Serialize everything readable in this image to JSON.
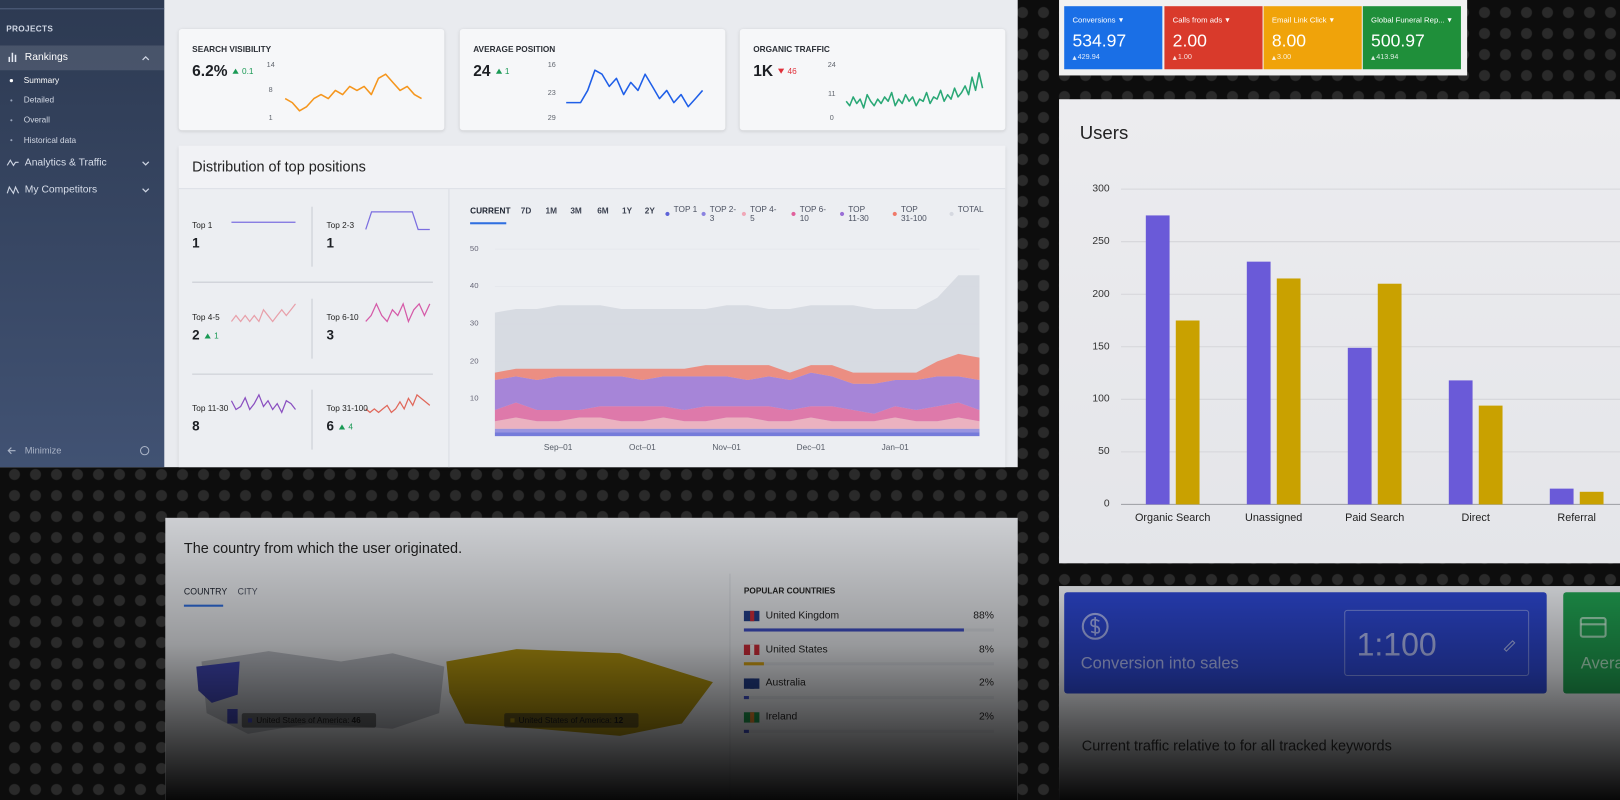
{
  "sidebar": {
    "section": "PROJECTS",
    "items": [
      {
        "label": "Rankings",
        "children": [
          "Summary",
          "Detailed",
          "Overall",
          "Historical data"
        ]
      },
      {
        "label": "Analytics & Traffic"
      },
      {
        "label": "My Competitors"
      }
    ],
    "minimize": "Minimize"
  },
  "kpi_cards": [
    {
      "title": "SEARCH VISIBILITY",
      "value": "6.2%",
      "change": "0.1",
      "direction": "up",
      "color": "#f5961d",
      "ylim": [
        1,
        14
      ],
      "yticks": [
        14,
        8,
        1
      ],
      "values": [
        6,
        5,
        3,
        4,
        6,
        7,
        6,
        8,
        7,
        9,
        8,
        9,
        7,
        11,
        12,
        10,
        8,
        9,
        7,
        6
      ]
    },
    {
      "title": "AVERAGE POSITION",
      "value": "24",
      "change": "1",
      "direction": "up",
      "color": "#1f5fe8",
      "ylim": [
        29,
        16
      ],
      "yticks": [
        16,
        23,
        29
      ],
      "values": [
        25,
        25,
        25,
        22,
        17,
        18,
        21,
        19,
        23,
        20,
        22,
        18,
        21,
        24,
        22,
        25,
        23,
        26,
        24,
        22
      ]
    },
    {
      "title": "ORGANIC TRAFFIC",
      "value": "1K",
      "change": "46",
      "direction": "down",
      "color": "#2aa876",
      "ylim": [
        0,
        24
      ],
      "yticks": [
        24,
        11,
        0
      ],
      "values": [
        8,
        6,
        10,
        7,
        9,
        5,
        11,
        8,
        6,
        9,
        7,
        10,
        8,
        12,
        6,
        9,
        7,
        11,
        8,
        10,
        6,
        9,
        8,
        12,
        7,
        10,
        9,
        13,
        8,
        11,
        9,
        14,
        10,
        12,
        15,
        11,
        19,
        13,
        21,
        14
      ]
    }
  ],
  "distribution": {
    "title": "Distribution of top positions",
    "tiles": [
      {
        "label": "Top 1",
        "value": "1",
        "color": "#7b6ee0",
        "values": [
          1,
          1,
          1,
          1,
          1,
          1,
          1,
          1,
          1,
          1,
          1,
          1
        ]
      },
      {
        "label": "Top 2-3",
        "value": "1",
        "color": "#7b6ee0",
        "values": [
          1,
          2,
          2,
          2,
          2,
          2,
          2,
          2,
          2,
          1,
          1,
          1
        ]
      },
      {
        "label": "Top 4-5",
        "value": "2",
        "change": "1",
        "direction": "up",
        "color": "#e8a0aa",
        "values": [
          2,
          3,
          2,
          3,
          2,
          3,
          2,
          4,
          3,
          2,
          3,
          4,
          3,
          4,
          5
        ]
      },
      {
        "label": "Top 6-10",
        "value": "3",
        "color": "#d55aa8",
        "values": [
          3,
          4,
          6,
          4,
          3,
          5,
          4,
          6,
          3,
          5,
          6,
          4,
          6
        ]
      },
      {
        "label": "Top 11-30",
        "value": "8",
        "color": "#8a4fc0",
        "values": [
          9,
          6,
          7,
          10,
          6,
          8,
          11,
          7,
          9,
          6,
          8,
          5,
          9,
          8,
          6
        ]
      },
      {
        "label": "Top 31-100",
        "value": "6",
        "change": "4",
        "direction": "up",
        "color": "#e0675a",
        "values": [
          5,
          4,
          5,
          4,
          5,
          6,
          4,
          5,
          7,
          5,
          8,
          6,
          9,
          8,
          7,
          6
        ]
      }
    ],
    "tabs": [
      "CURRENT",
      "7D",
      "1M",
      "3M",
      "6M",
      "1Y",
      "2Y"
    ],
    "chart_data": {
      "type": "area",
      "categories": [
        null,
        null,
        null,
        "Sep–01",
        null,
        null,
        null,
        "Oct–01",
        null,
        null,
        null,
        "Nov–01",
        null,
        null,
        null,
        "Dec–01",
        null,
        null,
        null,
        "Jan–01",
        null,
        null,
        null,
        null
      ],
      "ylim": [
        0,
        50
      ],
      "yticks": [
        50,
        40,
        30,
        20,
        10
      ],
      "series": [
        {
          "name": "TOP 1",
          "color": "#5d63d8",
          "values": [
            1,
            1,
            1,
            1,
            1,
            1,
            1,
            1,
            1,
            1,
            1,
            1,
            1,
            1,
            1,
            1,
            1,
            1,
            1,
            1,
            1,
            1,
            1,
            1
          ]
        },
        {
          "name": "TOP 2-3",
          "color": "#8a82e0",
          "values": [
            1,
            1,
            1,
            1,
            1,
            1,
            1,
            1,
            1,
            1,
            1,
            1,
            1,
            1,
            1,
            1,
            1,
            1,
            1,
            1,
            1,
            1,
            1,
            1
          ]
        },
        {
          "name": "TOP 4-5",
          "color": "#f0a8b8",
          "values": [
            2,
            3,
            2,
            2,
            3,
            3,
            2,
            2,
            3,
            2,
            2,
            3,
            3,
            2,
            2,
            3,
            2,
            2,
            2,
            3,
            2,
            2,
            3,
            2
          ]
        },
        {
          "name": "TOP 6-10",
          "color": "#e0609c",
          "values": [
            3,
            4,
            3,
            3,
            2,
            3,
            4,
            4,
            3,
            3,
            4,
            3,
            3,
            4,
            3,
            3,
            4,
            3,
            2,
            3,
            3,
            4,
            4,
            3
          ]
        },
        {
          "name": "TOP 11-30",
          "color": "#9a6fd6",
          "values": [
            8,
            7,
            8,
            9,
            9,
            8,
            8,
            7,
            8,
            9,
            8,
            8,
            7,
            8,
            8,
            9,
            8,
            7,
            8,
            7,
            8,
            8,
            7,
            8
          ]
        },
        {
          "name": "TOP 31-100",
          "color": "#f07a6a",
          "values": [
            2,
            2,
            3,
            2,
            2,
            2,
            2,
            3,
            2,
            2,
            3,
            3,
            4,
            3,
            2,
            2,
            3,
            3,
            3,
            2,
            2,
            4,
            6,
            6
          ]
        },
        {
          "name": "TOTAL",
          "color": "#d5d8e0",
          "stacked": false,
          "values": [
            33,
            34,
            34,
            35,
            35,
            35,
            34,
            34,
            34,
            34,
            34,
            35,
            35,
            34,
            34,
            35,
            35,
            35,
            34,
            34,
            34,
            37,
            43,
            43
          ]
        }
      ]
    }
  },
  "country": {
    "title": "The country from which the user originated.",
    "tabs": [
      "COUNTRY",
      "CITY"
    ],
    "map_tooltips": [
      {
        "label": "United States of America:",
        "value": 46
      },
      {
        "label": "United States of America:",
        "value": 12
      }
    ],
    "popular": {
      "title": "POPULAR COUNTRIES",
      "rows": [
        {
          "name": "United Kingdom",
          "value": 88,
          "label": "88%",
          "color": "#4050c8"
        },
        {
          "name": "United States",
          "value": 8,
          "label": "8%",
          "color": "#d8a514"
        },
        {
          "name": "Australia",
          "value": 2,
          "label": "2%",
          "color": "#4050c8"
        },
        {
          "name": "Ireland",
          "value": 2,
          "label": "2%",
          "color": "#4050c8"
        }
      ]
    }
  },
  "google_ads": [
    {
      "label": "Conversions",
      "value": "534.97",
      "previous": "429.94",
      "color": "#1a6fe6"
    },
    {
      "label": "Calls from ads",
      "value": "2.00",
      "previous": "1.00",
      "color": "#d93a2b"
    },
    {
      "label": "Email Link Click",
      "value": "8.00",
      "previous": "3.00",
      "color": "#f0a30a"
    },
    {
      "label": "Global Funeral Rep...",
      "value": "500.97",
      "previous": "413.94",
      "color": "#1f8f3a"
    }
  ],
  "users": {
    "title": "Users",
    "chart_data": {
      "type": "bar",
      "categories": [
        "Organic Search",
        "Unassigned",
        "Paid Search",
        "Direct",
        "Referral"
      ],
      "series": [
        {
          "color": "#6a5ad8",
          "values": [
            275,
            231,
            149,
            118,
            15
          ]
        },
        {
          "color": "#c9a100",
          "values": [
            175,
            215,
            210,
            94,
            12
          ]
        }
      ],
      "ylim": [
        0,
        300
      ],
      "yticks": [
        0,
        50,
        100,
        150,
        200,
        250,
        300
      ],
      "grid": true
    }
  },
  "conversion": {
    "cards": [
      {
        "title": "Conversion into sales",
        "ratio": "1:100",
        "color": "#2b44c8"
      },
      {
        "title": "Avera",
        "color": "#1f9a4e"
      }
    ],
    "footer": "Current traffic relative to for all tracked keywords"
  }
}
